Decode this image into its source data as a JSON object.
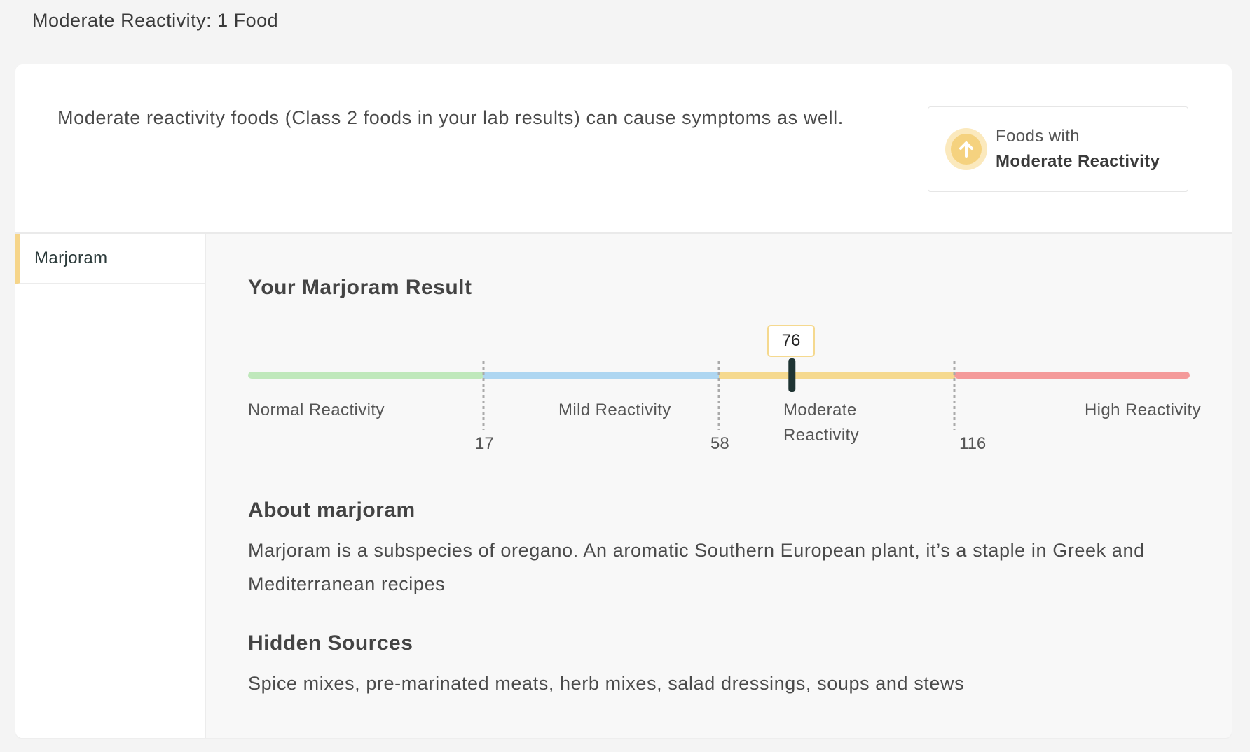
{
  "page": {
    "section_title": "Moderate Reactivity: 1 Food"
  },
  "intro": {
    "text": "Moderate reactivity foods (Class 2 foods in your lab results) can cause symptoms as well."
  },
  "legend": {
    "line1": "Foods with",
    "line2": "Moderate Reactivity",
    "icon": "arrow-up-circle-icon",
    "accent_color": "#f5d27f"
  },
  "sidebar": {
    "items": [
      {
        "label": "Marjoram",
        "selected": true
      }
    ]
  },
  "result": {
    "title": "Your Marjoram Result",
    "value": 76,
    "value_label": "76",
    "scale": {
      "min": 0,
      "max": 175,
      "thresholds": [
        17,
        58,
        116
      ],
      "threshold_labels": [
        "17",
        "58",
        "116"
      ],
      "categories": [
        {
          "label": "Normal Reactivity",
          "color": "#bfe8bb"
        },
        {
          "label": "Mild Reactivity",
          "color": "#aed6f1"
        },
        {
          "label": "Moderate Reactivity",
          "color": "#f5d98f"
        },
        {
          "label": "High Reactivity",
          "color": "#f49a9a"
        }
      ]
    }
  },
  "about": {
    "title": "About marjoram",
    "text": "Marjoram is a subspecies of oregano. An aromatic Southern European plant, it’s a staple in Greek and Mediterranean recipes"
  },
  "hidden_sources": {
    "title": "Hidden Sources",
    "text": "Spice mixes, pre-marinated meats, herb mixes, salad dressings, soups and stews"
  }
}
